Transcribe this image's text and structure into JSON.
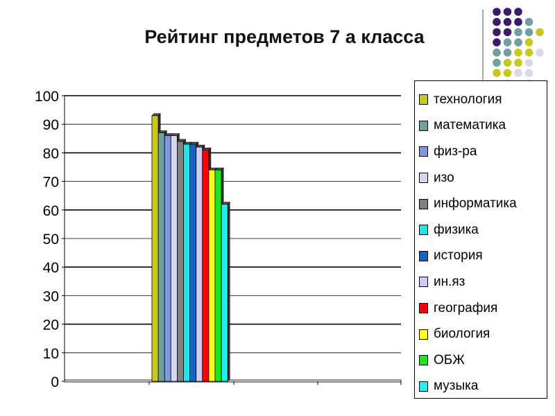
{
  "chart_data": {
    "type": "bar",
    "title": "Рейтинг предметов 7 а класса",
    "xlabel": "",
    "ylabel": "",
    "ylim": [
      0,
      100
    ],
    "yticks": [
      "0",
      "10",
      "20",
      "30",
      "40",
      "50",
      "60",
      "70",
      "80",
      "90",
      "100"
    ],
    "grid": true,
    "legend_position": "right",
    "series": [
      {
        "name": "технология",
        "values": [
          93
        ],
        "color": "#c8c81e"
      },
      {
        "name": "математика",
        "values": [
          87
        ],
        "color": "#6f9f9f"
      },
      {
        "name": "физ-ра",
        "values": [
          86
        ],
        "color": "#7f96e6"
      },
      {
        "name": "изо",
        "values": [
          86
        ],
        "color": "#d6d6ee"
      },
      {
        "name": "информатика",
        "values": [
          84
        ],
        "color": "#808080"
      },
      {
        "name": "физика",
        "values": [
          83
        ],
        "color": "#1ee6e6"
      },
      {
        "name": "история",
        "values": [
          83
        ],
        "color": "#1464c8"
      },
      {
        "name": "ин.яз",
        "values": [
          82
        ],
        "color": "#ccccf8"
      },
      {
        "name": "география",
        "values": [
          81
        ],
        "color": "#ff0000"
      },
      {
        "name": "биология",
        "values": [
          74
        ],
        "color": "#ffff1e"
      },
      {
        "name": "ОБЖ",
        "values": [
          74
        ],
        "color": "#1ee61e"
      },
      {
        "name": "музыка",
        "values": [
          62
        ],
        "color": "#1ef0f0"
      }
    ]
  },
  "decor_colors": {
    "purple": "#3c1a6a",
    "teal": "#6f9f9f",
    "olive": "#c8c81e",
    "lavender": "#d8d8ec"
  }
}
